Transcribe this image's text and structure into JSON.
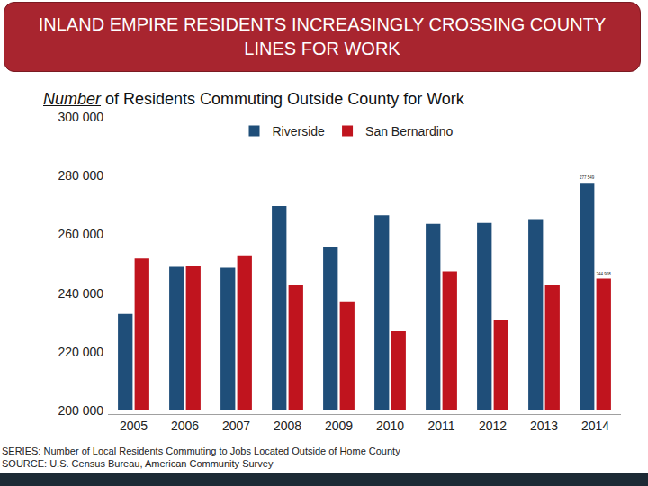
{
  "chart_data": {
    "type": "bar",
    "title": "INLAND EMPIRE RESIDENTS INCREASINGLY CROSSING COUNTY LINES FOR WORK",
    "subtitle": "Number of Residents Commuting Outside County for Work",
    "annotations": [
      "SERIES: Number of Local Residents Commuting to Jobs Located Outside of Home County",
      "SOURCE: U.S. Census Bureau, American Community Survey"
    ],
    "categories": [
      "2005",
      "2006",
      "2007",
      "2008",
      "2009",
      "2010",
      "2011",
      "2012",
      "2013",
      "2014"
    ],
    "series": [
      {
        "name": "Riverside",
        "color": "#1f4e79",
        "values": [
          232900,
          248900,
          248600,
          269600,
          255650,
          266500,
          263600,
          263900,
          265200,
          277549
        ],
        "value_labels": [
          null,
          null,
          null,
          null,
          null,
          null,
          null,
          null,
          null,
          "277 549"
        ]
      },
      {
        "name": "San Bernardino",
        "color": "#c0141e",
        "values": [
          251800,
          249300,
          252800,
          242600,
          237200,
          227000,
          247400,
          230800,
          242600,
          244908
        ],
        "value_labels": [
          null,
          null,
          null,
          null,
          null,
          null,
          null,
          null,
          null,
          "244 908"
        ]
      }
    ],
    "ylim": [
      200000,
      300000
    ],
    "yticks": [
      {
        "value": 200000,
        "label": "200 000"
      },
      {
        "value": 220000,
        "label": "220 000"
      },
      {
        "value": 240000,
        "label": "240 000"
      },
      {
        "value": 260000,
        "label": "260 000"
      },
      {
        "value": 280000,
        "label": "280 000"
      },
      {
        "value": 300000,
        "label": "300 000"
      }
    ],
    "grid": false,
    "legend": "top",
    "data_labels": true
  }
}
